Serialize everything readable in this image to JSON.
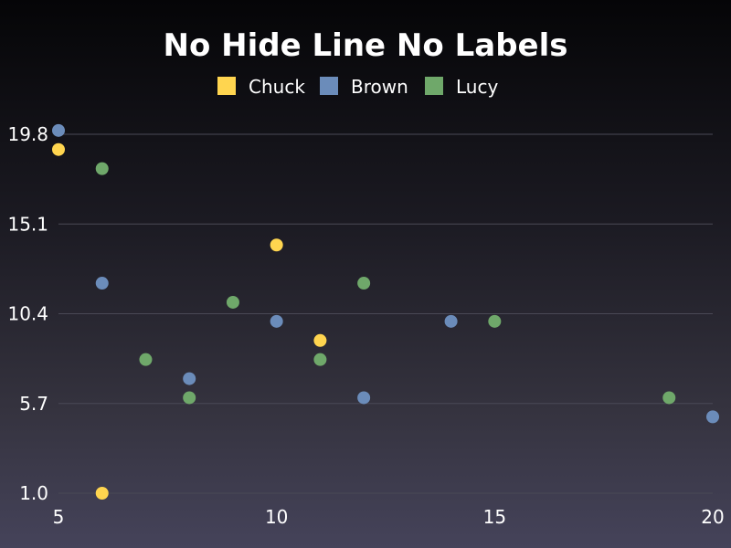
{
  "chart_data": {
    "type": "scatter",
    "title": "No Hide Line No Labels",
    "xlabel": "",
    "ylabel": "",
    "xlim": [
      5,
      20
    ],
    "ylim": [
      1.0,
      19.8
    ],
    "x_ticks": [
      "5",
      "10",
      "15",
      "20"
    ],
    "y_ticks": [
      "1.0",
      "5.7",
      "10.4",
      "15.1",
      "19.8"
    ],
    "grid": "horizontal",
    "legend": "top-center",
    "series": [
      {
        "name": "Chuck",
        "color": "#ffd54f",
        "points": [
          [
            5,
            19.0
          ],
          [
            6,
            1.0
          ],
          [
            10,
            14.0
          ],
          [
            11,
            9.0
          ]
        ]
      },
      {
        "name": "Brown",
        "color": "#6b8cba",
        "points": [
          [
            5,
            20.0
          ],
          [
            6,
            12.0
          ],
          [
            8,
            7.0
          ],
          [
            10,
            10.0
          ],
          [
            12,
            6.0
          ],
          [
            14,
            10.0
          ],
          [
            20,
            5.0
          ]
        ]
      },
      {
        "name": "Lucy",
        "color": "#6fa86a",
        "points": [
          [
            6,
            18.0
          ],
          [
            7,
            8.0
          ],
          [
            8,
            6.0
          ],
          [
            9,
            11.0
          ],
          [
            11,
            8.0
          ],
          [
            12,
            12.0
          ],
          [
            15,
            10.0
          ],
          [
            19,
            6.0
          ]
        ]
      }
    ]
  }
}
